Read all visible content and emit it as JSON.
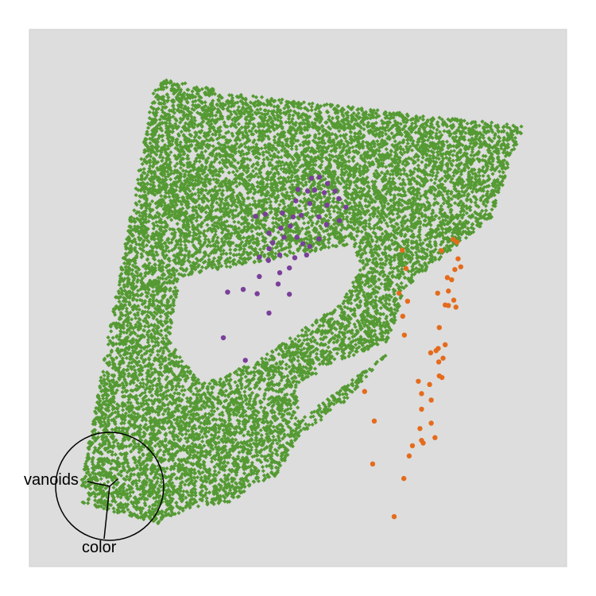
{
  "chart_data": {
    "type": "scatter",
    "title": "",
    "xlabel": "",
    "ylabel": "",
    "grid": false,
    "legend": "none",
    "panel_background": "#dddddd",
    "xlim": [
      0,
      100
    ],
    "ylim": [
      0,
      100
    ],
    "series": [
      {
        "color": "#559a33",
        "marker": "diamond",
        "point_count_estimate": 12000,
        "regions": [
          [
            [
              23,
              88
            ],
            [
              25,
              91
            ],
            [
              38,
              88
            ],
            [
              92,
              82
            ],
            [
              86,
              65
            ],
            [
              70,
              52
            ],
            [
              67,
              42
            ],
            [
              57,
              38
            ],
            [
              50,
              34
            ],
            [
              50,
              27
            ],
            [
              67,
              40
            ],
            [
              58,
              30
            ],
            [
              50,
              24
            ],
            [
              46,
              17
            ],
            [
              41,
              15
            ],
            [
              38,
              12
            ],
            [
              30,
              11
            ],
            [
              24,
              8
            ],
            [
              9,
              12
            ]
          ],
          [
            [
              26,
              42
            ],
            [
              28,
              54
            ],
            [
              60,
              60
            ],
            [
              62,
              56
            ],
            [
              58,
              49
            ],
            [
              42,
              38
            ],
            [
              32,
              34
            ]
          ]
        ]
      },
      {
        "color": "#7a3f9a",
        "marker": "circle",
        "points": [
          [
            54.0,
            72.5
          ],
          [
            52.5,
            72.3
          ],
          [
            55.5,
            71.3
          ],
          [
            50.0,
            70.2
          ],
          [
            51.8,
            69.9
          ],
          [
            53.1,
            70.1
          ],
          [
            56.9,
            69.9
          ],
          [
            54.9,
            69.6
          ],
          [
            57.6,
            68.5
          ],
          [
            49.6,
            68.1
          ],
          [
            52.2,
            67.6
          ],
          [
            55.4,
            67.3
          ],
          [
            58.9,
            66.9
          ],
          [
            47.1,
            65.8
          ],
          [
            43.9,
            65.6
          ],
          [
            42.1,
            65.2
          ],
          [
            49.1,
            65.1
          ],
          [
            50.6,
            65.4
          ],
          [
            53.9,
            65.1
          ],
          [
            57.7,
            64.4
          ],
          [
            55.3,
            63.7
          ],
          [
            48.6,
            63.4
          ],
          [
            46.8,
            63.0
          ],
          [
            44.6,
            62.1
          ],
          [
            47.4,
            61.3
          ],
          [
            49.8,
            61.3
          ],
          [
            53.9,
            61.0
          ],
          [
            45.3,
            60.3
          ],
          [
            50.9,
            60.1
          ],
          [
            52.2,
            59.6
          ],
          [
            44.6,
            59.2
          ],
          [
            46.6,
            58.0
          ],
          [
            51.6,
            58.0
          ],
          [
            42.8,
            57.6
          ],
          [
            49.4,
            57.5
          ],
          [
            44.5,
            57.0
          ],
          [
            48.4,
            55.6
          ],
          [
            46.6,
            54.7
          ],
          [
            42.8,
            54.0
          ],
          [
            46.3,
            52.6
          ],
          [
            36.9,
            51.1
          ],
          [
            42.4,
            50.8
          ],
          [
            48.4,
            50.7
          ],
          [
            36.1,
            42.6
          ],
          [
            40.2,
            38.4
          ],
          [
            44.6,
            47.2
          ],
          [
            39.8,
            51.6
          ]
        ]
      },
      {
        "color": "#e56b1c",
        "marker": "circle",
        "points": [
          [
            78.9,
            60.9
          ],
          [
            79.6,
            60.4
          ],
          [
            69.4,
            58.9
          ],
          [
            76.7,
            58.8
          ],
          [
            79.8,
            57.3
          ],
          [
            79.2,
            55.3
          ],
          [
            70.1,
            55.5
          ],
          [
            80.3,
            55.8
          ],
          [
            77.8,
            53.8
          ],
          [
            78.6,
            53.4
          ],
          [
            78.0,
            51.3
          ],
          [
            68.8,
            50.9
          ],
          [
            76.0,
            50.9
          ],
          [
            70.4,
            49.4
          ],
          [
            79.0,
            49.6
          ],
          [
            78.0,
            48.6
          ],
          [
            77.4,
            48.7
          ],
          [
            79.4,
            48.3
          ],
          [
            69.5,
            46.6
          ],
          [
            76.3,
            44.5
          ],
          [
            69.8,
            43.1
          ],
          [
            77.4,
            41.3
          ],
          [
            76.1,
            40.6
          ],
          [
            75.7,
            40.2
          ],
          [
            74.7,
            39.8
          ],
          [
            77.0,
            38.8
          ],
          [
            76.2,
            38.1
          ],
          [
            76.3,
            35.5
          ],
          [
            76.8,
            35.2
          ],
          [
            72.4,
            34.5
          ],
          [
            74.5,
            33.9
          ],
          [
            62.4,
            32.6
          ],
          [
            73.0,
            32.2
          ],
          [
            74.8,
            31.0
          ],
          [
            73.0,
            29.3
          ],
          [
            64.2,
            27.1
          ],
          [
            74.8,
            26.7
          ],
          [
            72.7,
            25.7
          ],
          [
            75.5,
            24.0
          ],
          [
            73.0,
            23.5
          ],
          [
            73.3,
            23.0
          ],
          [
            71.3,
            22.5
          ],
          [
            70.7,
            20.6
          ],
          [
            63.9,
            19.1
          ],
          [
            69.7,
            16.4
          ],
          [
            67.9,
            9.3
          ]
        ]
      }
    ],
    "axes_glyph": {
      "labels": [
        {
          "text": "vanoids"
        },
        {
          "text": "color"
        }
      ]
    }
  }
}
